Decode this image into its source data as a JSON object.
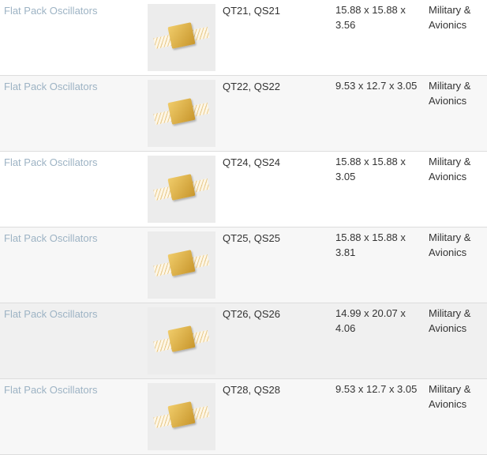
{
  "rows": [
    {
      "name": "Flat Pack Oscillators",
      "part": "QT21, QS21",
      "dims": "15.88 x 15.88 x 3.56",
      "category": "Military & Avionics"
    },
    {
      "name": "Flat Pack Oscillators",
      "part": "QT22, QS22",
      "dims": "9.53 x 12.7 x 3.05",
      "category": "Military & Avionics"
    },
    {
      "name": "Flat Pack Oscillators",
      "part": "QT24, QS24",
      "dims": "15.88 x 15.88 x 3.05",
      "category": "Military & Avionics"
    },
    {
      "name": "Flat Pack Oscillators",
      "part": "QT25, QS25",
      "dims": "15.88 x 15.88 x 3.81",
      "category": "Military & Avionics"
    },
    {
      "name": "Flat Pack Oscillators",
      "part": "QT26, QS26",
      "dims": "14.99 x 20.07 x 4.06",
      "category": "Military & Avionics"
    },
    {
      "name": "Flat Pack Oscillators",
      "part": "QT28, QS28",
      "dims": "9.53 x 12.7 x 3.05",
      "category": "Military & Avionics"
    }
  ],
  "colors": {
    "link": "#9db3c4",
    "row_alt": "#f7f7f7",
    "chip_gold": "#d9ac45"
  }
}
